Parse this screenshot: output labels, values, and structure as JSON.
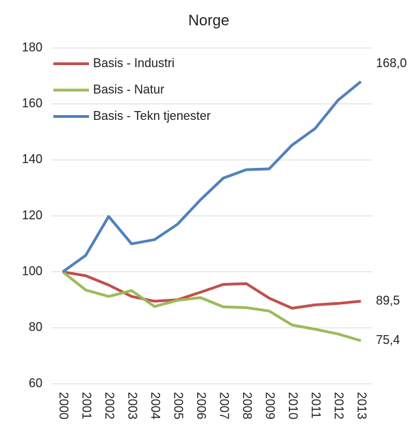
{
  "chart_data": {
    "type": "line",
    "title": "Norge",
    "categories": [
      "2000",
      "2001",
      "2002",
      "2003",
      "2004",
      "2005",
      "2006",
      "2007",
      "2008",
      "2009",
      "2010",
      "2011",
      "2012",
      "2013"
    ],
    "series": [
      {
        "name": "Basis - Industri",
        "color": "#c0504d",
        "values": [
          100,
          98.6,
          95.3,
          91.2,
          89.5,
          90,
          92.7,
          95.5,
          95.8,
          90.6,
          87,
          88.2,
          88.7,
          89.5
        ],
        "value_labels": [
          null,
          null,
          null,
          null,
          null,
          null,
          null,
          null,
          null,
          null,
          null,
          null,
          null,
          "89,5"
        ]
      },
      {
        "name": "Basis - Natur",
        "color": "#9bbb59",
        "values": [
          100,
          93.5,
          91.2,
          93.3,
          87.6,
          89.8,
          90.8,
          87.5,
          87.2,
          86,
          81,
          79.5,
          77.8,
          75.4
        ],
        "value_labels": [
          null,
          null,
          null,
          null,
          null,
          null,
          null,
          null,
          null,
          null,
          null,
          null,
          null,
          "75,4"
        ]
      },
      {
        "name": "Basis - Tekn tjenester",
        "color": "#4f81bd",
        "values": [
          100,
          105.9,
          119.8,
          110,
          111.5,
          117,
          125.7,
          133.5,
          136.5,
          136.8,
          145.3,
          151.2,
          161.3,
          168.0
        ],
        "value_labels": [
          null,
          null,
          null,
          null,
          null,
          null,
          null,
          null,
          null,
          null,
          null,
          null,
          null,
          "168,0"
        ]
      }
    ],
    "ylim": [
      60,
      180
    ],
    "yticks": [
      60,
      80,
      100,
      120,
      140,
      160,
      180
    ],
    "grid": true,
    "legend": "top-left"
  }
}
